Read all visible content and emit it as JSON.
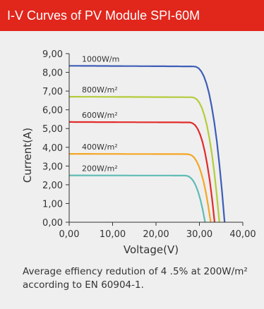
{
  "header": {
    "title": "I-V  Curves of PV Module SPI-60M"
  },
  "note": "Average effiency redution of 4 .5% at 200W/m² according to EN 60904-1.",
  "colors": {
    "header_bg": "#e1261c",
    "card_bg": "#efefef",
    "axis": "#333333"
  },
  "chart_data": {
    "type": "line",
    "title": "",
    "xlabel": "Voltage(V)",
    "ylabel": "Current(A)",
    "xlim": [
      0,
      40
    ],
    "ylim": [
      0,
      9
    ],
    "grid": false,
    "x_ticks": [
      {
        "value": 0,
        "label": "0,00"
      },
      {
        "value": 10,
        "label": "10,00"
      },
      {
        "value": 20,
        "label": "20,00"
      },
      {
        "value": 30,
        "label": "30,00"
      },
      {
        "value": 40,
        "label": "40,00"
      }
    ],
    "y_ticks": [
      {
        "value": 0,
        "label": "0,00"
      },
      {
        "value": 1,
        "label": "1,00"
      },
      {
        "value": 2,
        "label": "2,00"
      },
      {
        "value": 3,
        "label": "3,00"
      },
      {
        "value": 4,
        "label": "4,00"
      },
      {
        "value": 5,
        "label": "5,00"
      },
      {
        "value": 6,
        "label": "6,00"
      },
      {
        "value": 7,
        "label": "7,00"
      },
      {
        "value": 8,
        "label": "8,00"
      },
      {
        "value": 9,
        "label": "9,00"
      }
    ],
    "series": [
      {
        "name": "1000W/m²",
        "label": "1000W/m",
        "color": "#3d5db8",
        "isc": 8.35,
        "voc": 35.8,
        "knee": 28.5
      },
      {
        "name": "800W/m²",
        "label": "800W/m²",
        "color": "#b3cc3a",
        "isc": 6.7,
        "voc": 34.6,
        "knee": 28.0
      },
      {
        "name": "600W/m²",
        "label": "600W/m²",
        "color": "#e32a2a",
        "isc": 5.35,
        "voc": 33.5,
        "knee": 27.5
      },
      {
        "name": "400W/m²",
        "label": "400W/m²",
        "color": "#f5a623",
        "isc": 3.65,
        "voc": 32.6,
        "knee": 27.0
      },
      {
        "name": "200W/m²",
        "label": "200W/m²",
        "color": "#5fbcb4",
        "isc": 2.5,
        "voc": 31.3,
        "knee": 26.5
      }
    ]
  }
}
